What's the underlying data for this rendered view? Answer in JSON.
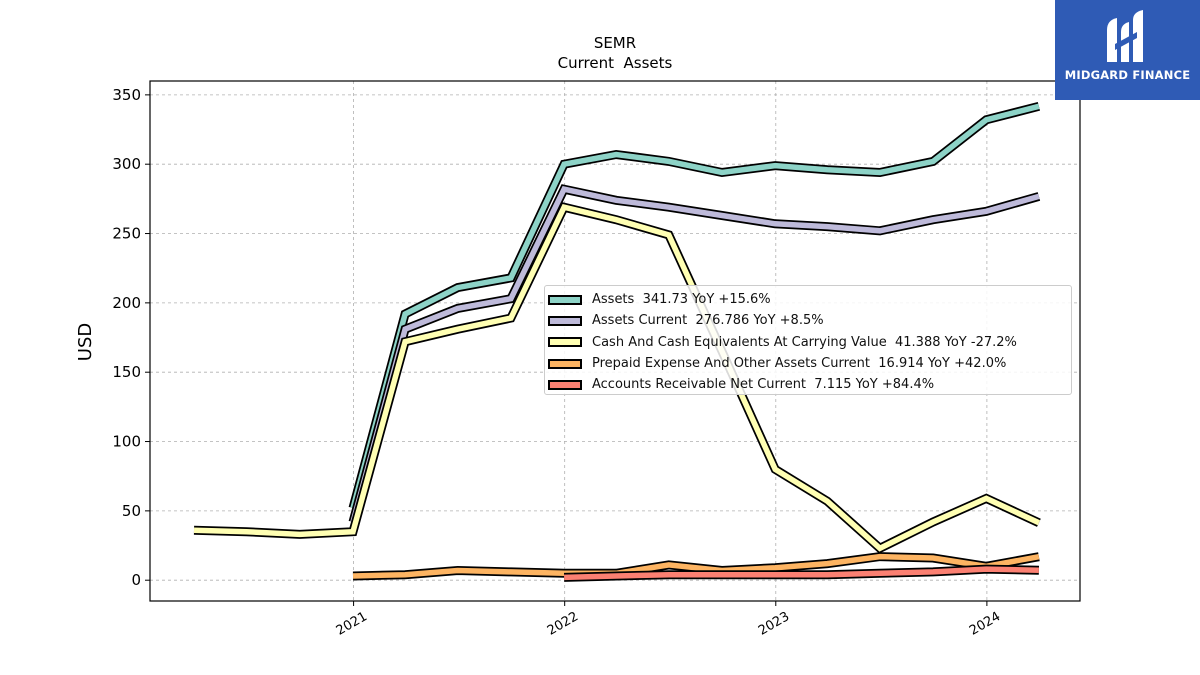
{
  "chart_data": {
    "type": "line",
    "title": "SEMR",
    "subtitle": "Current  Assets",
    "ylabel": "USD",
    "xlabel": "",
    "ylim": [
      -15,
      360
    ],
    "xlim": [
      "2020-01-15",
      "2024-06-10"
    ],
    "yticks": [
      0,
      50,
      100,
      150,
      200,
      250,
      300,
      350
    ],
    "xticks": [
      {
        "label": "2021",
        "date": "2021-01-01"
      },
      {
        "label": "2022",
        "date": "2022-01-01"
      },
      {
        "label": "2023",
        "date": "2023-01-01"
      },
      {
        "label": "2024",
        "date": "2024-01-01"
      }
    ],
    "grid": true,
    "legend_position": "center-right",
    "series": [
      {
        "name": "Assets",
        "legend_text": "Assets  341.73 YoY +15.6%",
        "color": "#8dd3c7",
        "points": [
          [
            "2020-12-31",
            52
          ],
          [
            "2021-03-31",
            192
          ],
          [
            "2021-06-30",
            211
          ],
          [
            "2021-09-30",
            218
          ],
          [
            "2021-12-31",
            300
          ],
          [
            "2022-03-31",
            307
          ],
          [
            "2022-06-30",
            302
          ],
          [
            "2022-09-30",
            294
          ],
          [
            "2022-12-31",
            299
          ],
          [
            "2023-03-31",
            296
          ],
          [
            "2023-06-30",
            294
          ],
          [
            "2023-09-30",
            302
          ],
          [
            "2023-12-31",
            332
          ],
          [
            "2024-03-31",
            341.73
          ]
        ]
      },
      {
        "name": "Assets Current",
        "legend_text": "Assets Current  276.786 YoY +8.5%",
        "color": "#bebada",
        "points": [
          [
            "2020-12-31",
            42
          ],
          [
            "2021-03-31",
            181
          ],
          [
            "2021-06-30",
            196
          ],
          [
            "2021-09-30",
            203
          ],
          [
            "2021-12-31",
            282
          ],
          [
            "2022-03-31",
            274
          ],
          [
            "2022-06-30",
            269
          ],
          [
            "2022-09-30",
            263
          ],
          [
            "2022-12-31",
            257
          ],
          [
            "2023-03-31",
            255
          ],
          [
            "2023-06-30",
            252
          ],
          [
            "2023-09-30",
            260
          ],
          [
            "2023-12-31",
            266
          ],
          [
            "2024-03-31",
            276.786
          ]
        ]
      },
      {
        "name": "Cash And Cash Equivalents At Carrying Value",
        "legend_text": "Cash And Cash Equivalents At Carrying Value  41.388 YoY -27.2%",
        "color": "#ffffb3",
        "points": [
          [
            "2020-03-31",
            36
          ],
          [
            "2020-06-30",
            35
          ],
          [
            "2020-09-30",
            33
          ],
          [
            "2020-12-31",
            35
          ],
          [
            "2021-03-31",
            172
          ],
          [
            "2021-06-30",
            181
          ],
          [
            "2021-09-30",
            189
          ],
          [
            "2021-12-31",
            269
          ],
          [
            "2022-03-31",
            260
          ],
          [
            "2022-06-30",
            249
          ],
          [
            "2022-09-30",
            165
          ],
          [
            "2022-12-31",
            80
          ],
          [
            "2023-03-31",
            57
          ],
          [
            "2023-06-30",
            23
          ],
          [
            "2023-09-30",
            42
          ],
          [
            "2023-12-31",
            59
          ],
          [
            "2024-03-31",
            41.388
          ]
        ]
      },
      {
        "name": "Prepaid Expense And Other Assets Current",
        "legend_text": "Prepaid Expense And Other Assets Current  16.914 YoY +42.0%",
        "color": "#fdb462",
        "points": [
          [
            "2020-12-31",
            3
          ],
          [
            "2021-03-31",
            4
          ],
          [
            "2021-06-30",
            7
          ],
          [
            "2021-09-30",
            6
          ],
          [
            "2021-12-31",
            5
          ],
          [
            "2022-03-31",
            5
          ],
          [
            "2022-06-30",
            11
          ],
          [
            "2022-09-30",
            7
          ],
          [
            "2022-12-31",
            9
          ],
          [
            "2023-03-31",
            12
          ],
          [
            "2023-06-30",
            17
          ],
          [
            "2023-09-30",
            16
          ],
          [
            "2023-12-31",
            10
          ],
          [
            "2024-03-31",
            16.914
          ]
        ]
      },
      {
        "name": "Accounts Receivable Net Current",
        "legend_text": "Accounts Receivable Net Current  7.115 YoY +84.4%",
        "color": "#fb8072",
        "points": [
          [
            "2021-12-31",
            2
          ],
          [
            "2022-03-31",
            3
          ],
          [
            "2022-06-30",
            4
          ],
          [
            "2022-09-30",
            4
          ],
          [
            "2022-12-31",
            4
          ],
          [
            "2023-03-31",
            4
          ],
          [
            "2023-06-30",
            5
          ],
          [
            "2023-09-30",
            6
          ],
          [
            "2023-12-31",
            8
          ],
          [
            "2024-03-31",
            7.115
          ]
        ]
      }
    ]
  },
  "logo": {
    "text": "MIDGARD FINANCE"
  }
}
